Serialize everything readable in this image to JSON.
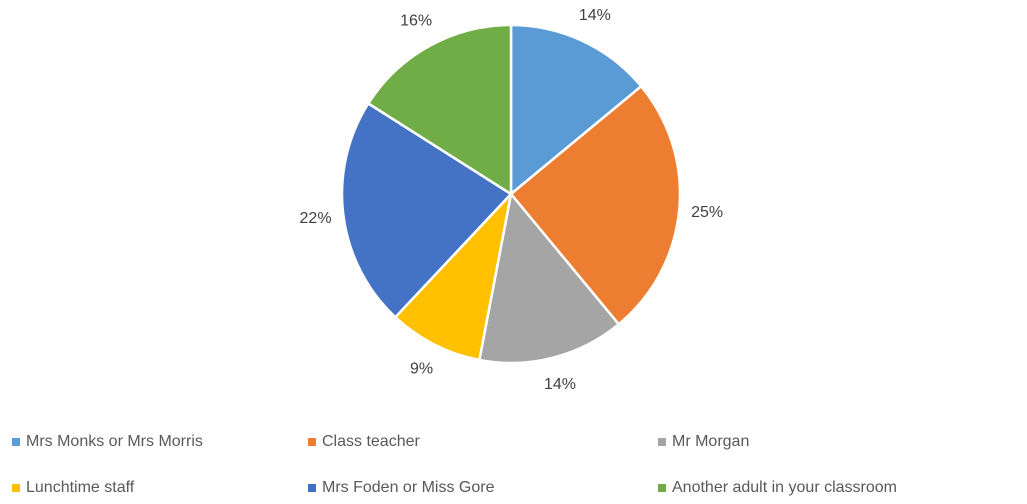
{
  "chart_data": {
    "type": "pie",
    "categories": [
      "Mrs Monks or Mrs Morris",
      "Class teacher",
      "Mr Morgan",
      "Lunchtime staff",
      "Mrs Foden or Miss Gore",
      "Another adult in your classroom"
    ],
    "values": [
      14,
      25,
      14,
      9,
      22,
      16
    ],
    "value_labels": [
      "14%",
      "25%",
      "14%",
      "9%",
      "22%",
      "16%"
    ],
    "colors": [
      "#5b9bd5",
      "#ed7d31",
      "#a5a5a5",
      "#ffc000",
      "#4472c4",
      "#70ad47"
    ],
    "legend": "bottom"
  }
}
